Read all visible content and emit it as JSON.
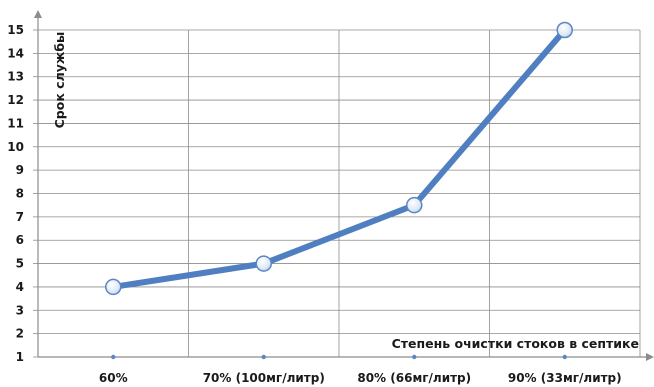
{
  "chart_data": {
    "type": "line",
    "title": "",
    "xlabel": "Степень очистки стоков в септике",
    "ylabel": "Срок службы",
    "categories": [
      "60%",
      "70% (100мг/литр)",
      "80% (66мг/литр)",
      "90% (33мг/литр)"
    ],
    "series": [
      {
        "values": [
          4,
          5,
          7.5,
          15
        ]
      }
    ],
    "yticks": [
      "1",
      "2",
      "3",
      "4",
      "5",
      "6",
      "7",
      "8",
      "9",
      "10",
      "11",
      "12",
      "13",
      "14",
      "15"
    ],
    "ylim": [
      1,
      15
    ],
    "grid": true,
    "legend": "none"
  },
  "colors": {
    "line": "#4f7fc1",
    "marker_fill": "#dce8f6",
    "marker_stroke": "#5d86bf",
    "grid": "#8c8c8c",
    "axis": "#8c8c8c",
    "x_point": "#5b86c5"
  }
}
